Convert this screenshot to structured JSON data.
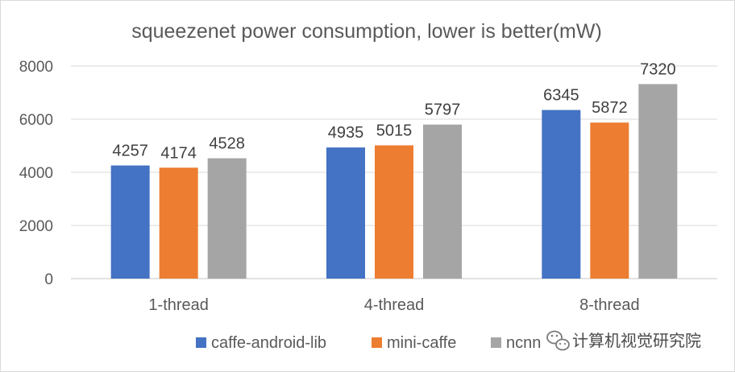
{
  "chart_data": {
    "type": "bar",
    "title": "squeezenet power consumption, lower is better(mW)",
    "categories": [
      "1-thread",
      "4-thread",
      "8-thread"
    ],
    "series": [
      {
        "name": "caffe-android-lib",
        "color": "#4472c4",
        "values": [
          4257,
          4935,
          6345
        ]
      },
      {
        "name": "mini-caffe",
        "color": "#ed7d31",
        "values": [
          4174,
          5015,
          5872
        ]
      },
      {
        "name": "ncnn",
        "color": "#a5a5a5",
        "values": [
          4528,
          5797,
          7320
        ]
      }
    ],
    "xlabel": "",
    "ylabel": "",
    "ylim": [
      0,
      8000
    ],
    "yticks": [
      0,
      2000,
      4000,
      6000,
      8000
    ],
    "grid": true,
    "legend": "bottom"
  },
  "watermark": {
    "text": "计算机视觉研究院",
    "icon": "wechat-icon"
  }
}
